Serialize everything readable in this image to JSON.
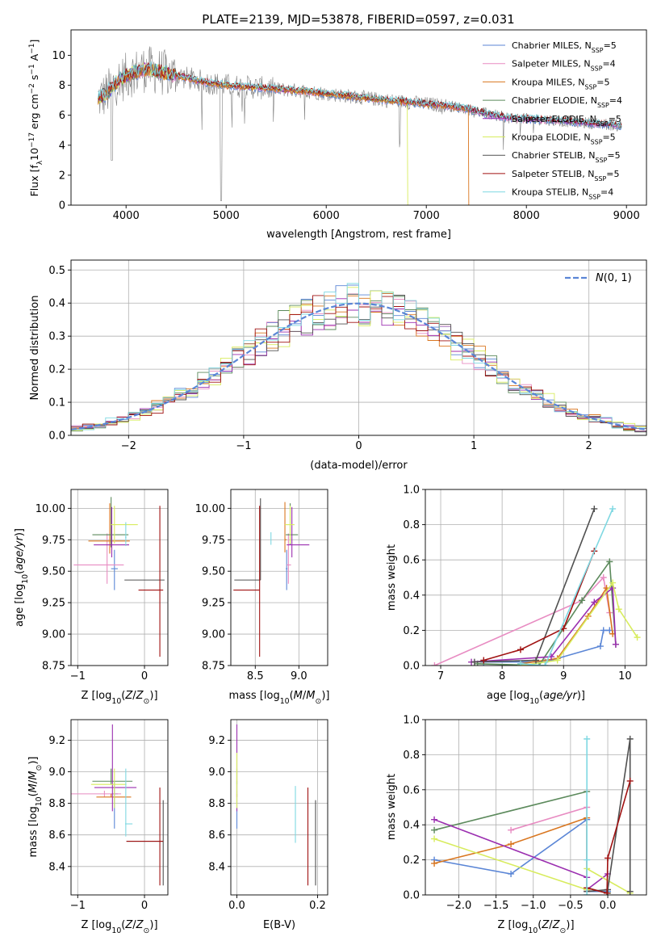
{
  "colors": {
    "series": [
      "#5b86d6",
      "#e88cc2",
      "#d9761f",
      "#5c8a5c",
      "#9b2fb0",
      "#d8ec5e",
      "#505050",
      "#a01212",
      "#7fd8e2"
    ],
    "grid": "#b0b0b0",
    "normal_curve": "#5b86d6",
    "spectrum_data": "#808080"
  },
  "series_names": [
    "Chabrier MILES, N_SSP=5",
    "Salpeter MILES, N_SSP=4",
    "Kroupa MILES, N_SSP=5",
    "Chabrier ELODIE, N_SSP=4",
    "Salpeter ELODIE, N_SSP=5",
    "Kroupa ELODIE, N_SSP=5",
    "Chabrier STELIB, N_SSP=5",
    "Salpeter STELIB, N_SSP=5",
    "Kroupa STELIB, N_SSP=4"
  ],
  "chart_data": [
    {
      "id": "spectrum",
      "type": "line",
      "title": "PLATE=2139, MJD=53878, FIBERID=0597, z=0.031",
      "xlabel": "wavelength [Angstrom, rest frame]",
      "ylabel": "Flux [f_λ 10^-17 erg cm^-2 s^-1 A^-1]",
      "xlim": [
        3450,
        9200
      ],
      "ylim": [
        0,
        11.7
      ],
      "xticks": [
        4000,
        5000,
        6000,
        7000,
        8000,
        9000
      ],
      "yticks": [
        0,
        2,
        4,
        6,
        8,
        10
      ],
      "legend": "top-right",
      "continuum_x": [
        3720,
        3800,
        3900,
        4000,
        4100,
        4200,
        4400,
        4600,
        4800,
        5000,
        5200,
        5400,
        5600,
        5800,
        6000,
        6200,
        6400,
        6600,
        6800,
        7000,
        7200,
        7400,
        7600,
        7800,
        8000,
        8200,
        8400,
        8600,
        8800,
        8950
      ],
      "continuum_y": [
        7.1,
        7.4,
        8.2,
        8.6,
        8.9,
        9.1,
        8.8,
        8.5,
        8.2,
        8.0,
        7.9,
        7.8,
        7.7,
        7.6,
        7.45,
        7.3,
        7.15,
        7.0,
        6.9,
        6.75,
        6.65,
        6.45,
        6.1,
        5.85,
        5.75,
        5.7,
        5.6,
        5.5,
        5.4,
        5.3
      ],
      "model_cutoff": [
        null,
        null,
        7420,
        null,
        null,
        6810,
        null,
        null,
        null
      ]
    },
    {
      "id": "residuals",
      "type": "line",
      "xlabel": "(data-model)/error",
      "ylabel": "Normed distribution",
      "xlim": [
        -2.5,
        2.5
      ],
      "ylim": [
        0,
        0.53
      ],
      "xticks": [
        -2,
        -1,
        0,
        1,
        2
      ],
      "yticks": [
        0,
        0.1,
        0.2,
        0.3,
        0.4,
        0.5
      ],
      "legend_label": "N(0,1)",
      "legend": "top-right",
      "bin_width": 0.1
    },
    {
      "id": "age_vs_Z",
      "type": "scatter",
      "xlabel": "Z [log10(Z/Z☉)]",
      "ylabel": "age  [log10(age/yr)]",
      "xlim": [
        -1.1,
        0.35
      ],
      "ylim": [
        8.75,
        10.15
      ],
      "xticks": [
        -1,
        0
      ],
      "yticks": [
        8.75,
        9.0,
        9.25,
        9.5,
        9.75,
        10.0
      ],
      "points": [
        {
          "x": -0.45,
          "y": 9.52,
          "xerr": [
            0.05,
            0.05
          ],
          "yerr": [
            0.17,
            0.15
          ]
        },
        {
          "x": -0.56,
          "y": 9.55,
          "xerr": [
            0.5,
            0.25
          ],
          "yerr": [
            0.15,
            0.25
          ]
        },
        {
          "x": -0.52,
          "y": 9.74,
          "xerr": [
            0.32,
            0.3
          ],
          "yerr": [
            0.1,
            0.3
          ]
        },
        {
          "x": -0.5,
          "y": 9.79,
          "xerr": [
            0.28,
            0.26
          ],
          "yerr": [
            0.1,
            0.3
          ]
        },
        {
          "x": -0.49,
          "y": 9.71,
          "xerr": [
            0.27,
            0.26
          ],
          "yerr": [
            0.1,
            0.3
          ]
        },
        {
          "x": -0.45,
          "y": 9.87,
          "xerr": [
            0.05,
            0.35
          ],
          "yerr": [
            0.15,
            0.15
          ]
        },
        {
          "x": -0.28,
          "y": 9.43,
          "xerr": [
            0.02,
            0.58
          ],
          "yerr": [
            0.0,
            0.0
          ]
        },
        {
          "x": 0.23,
          "y": 9.35,
          "xerr": [
            0.32,
            0.05
          ],
          "yerr": [
            0.53,
            0.67
          ]
        },
        {
          "x": -0.28,
          "y": 9.77,
          "xerr": [
            0.01,
            0.01
          ],
          "yerr": [
            0.07,
            0.12
          ]
        }
      ]
    },
    {
      "id": "age_vs_mass",
      "type": "scatter",
      "xlabel": "mass [log10(M/M☉)]",
      "ylim": [
        8.75,
        10.15
      ],
      "xlim": [
        8.22,
        9.33
      ],
      "xticks": [
        8.5,
        9.0
      ],
      "yticks": [
        8.75,
        9.0,
        9.25,
        9.5,
        9.75,
        10.0
      ],
      "points": [
        {
          "x": 8.86,
          "y": 9.52,
          "xerr": [
            0.01,
            0.01
          ],
          "yerr": [
            0.17,
            0.15
          ]
        },
        {
          "x": 8.88,
          "y": 9.55,
          "xerr": [
            0.02,
            0.03
          ],
          "yerr": [
            0.15,
            0.25
          ]
        },
        {
          "x": 8.84,
          "y": 9.75,
          "xerr": [
            0.0,
            0.02
          ],
          "yerr": [
            0.1,
            0.3
          ]
        },
        {
          "x": 8.9,
          "y": 9.79,
          "xerr": [
            0.05,
            0.09
          ],
          "yerr": [
            0.08,
            0.25
          ]
        },
        {
          "x": 8.92,
          "y": 9.71,
          "xerr": [
            0.06,
            0.2
          ],
          "yerr": [
            0.1,
            0.3
          ]
        },
        {
          "x": 8.9,
          "y": 9.87,
          "xerr": [
            0.06,
            0.05
          ],
          "yerr": [
            0.15,
            0.15
          ]
        },
        {
          "x": 8.56,
          "y": 9.43,
          "xerr": [
            0.3,
            0.0
          ],
          "yerr": [
            0.0,
            0.65
          ]
        },
        {
          "x": 8.55,
          "y": 9.35,
          "xerr": [
            0.3,
            0.0
          ],
          "yerr": [
            0.53,
            0.67
          ]
        },
        {
          "x": 8.68,
          "y": 9.75,
          "xerr": [
            0.0,
            0.0
          ],
          "yerr": [
            0.04,
            0.06
          ]
        }
      ]
    },
    {
      "id": "weight_vs_age",
      "type": "line",
      "xlabel": "age  [log10(age/yr)]",
      "ylabel": "mass weight",
      "xlim": [
        6.75,
        10.35
      ],
      "ylim": [
        0,
        1.0
      ],
      "xticks": [
        7,
        8,
        9,
        10
      ],
      "yticks": [
        0.0,
        0.2,
        0.4,
        0.6,
        0.8,
        1.0
      ],
      "series": [
        {
          "x": [
            7.7,
            8.7,
            9.6,
            9.65,
            9.75
          ],
          "y": [
            0.02,
            0.02,
            0.11,
            0.2,
            0.2
          ]
        },
        {
          "x": [
            6.9,
            9.3,
            9.65,
            9.75
          ],
          "y": [
            0.0,
            0.37,
            0.5,
            0.3
          ]
        },
        {
          "x": [
            8.3,
            8.9,
            9.4,
            9.7,
            9.8
          ],
          "y": [
            0.01,
            0.04,
            0.28,
            0.44,
            0.18
          ]
        },
        {
          "x": [
            7.6,
            8.6,
            9.3,
            9.75,
            9.85
          ],
          "y": [
            0.01,
            0.0,
            0.37,
            0.59,
            0.12
          ]
        },
        {
          "x": [
            7.5,
            8.8,
            9.5,
            9.8,
            9.85
          ],
          "y": [
            0.02,
            0.05,
            0.36,
            0.44,
            0.12
          ]
        },
        {
          "x": [
            8.3,
            8.9,
            9.8,
            9.9,
            10.2
          ],
          "y": [
            0.0,
            0.03,
            0.47,
            0.32,
            0.16
          ]
        },
        {
          "x": [
            7.55,
            8.55,
            9.5
          ],
          "y": [
            0.02,
            0.03,
            0.89
          ]
        },
        {
          "x": [
            7.7,
            8.3,
            9.0,
            9.5
          ],
          "y": [
            0.03,
            0.09,
            0.21,
            0.65
          ]
        },
        {
          "x": [
            8.3,
            8.7,
            9.8
          ],
          "y": [
            0.01,
            0.0,
            0.89
          ]
        }
      ]
    },
    {
      "id": "mass_vs_Z",
      "type": "scatter",
      "xlabel": "Z [log10(Z/Z☉)]",
      "ylabel": "mass [log10(M/M☉)]",
      "xlim": [
        -1.1,
        0.35
      ],
      "ylim": [
        8.22,
        9.33
      ],
      "xticks": [
        -1,
        0
      ],
      "yticks": [
        8.4,
        8.6,
        8.8,
        9.0,
        9.2
      ],
      "points": [
        {
          "x": -0.45,
          "y": 8.86,
          "xerr": [
            0.05,
            0.05
          ],
          "yerr": [
            0.22,
            0.08
          ]
        },
        {
          "x": -0.6,
          "y": 8.86,
          "xerr": [
            0.5,
            0.25
          ],
          "yerr": [
            0.02,
            0.02
          ]
        },
        {
          "x": -0.5,
          "y": 8.84,
          "xerr": [
            0.22,
            0.3
          ],
          "yerr": [
            0.0,
            0.02
          ]
        },
        {
          "x": -0.5,
          "y": 8.94,
          "xerr": [
            0.28,
            0.32
          ],
          "yerr": [
            0.02,
            0.08
          ]
        },
        {
          "x": -0.48,
          "y": 8.9,
          "xerr": [
            0.27,
            0.36
          ],
          "yerr": [
            0.15,
            0.4
          ]
        },
        {
          "x": -0.45,
          "y": 8.92,
          "xerr": [
            0.35,
            0.18
          ],
          "yerr": [
            0.15,
            0.1
          ]
        },
        {
          "x": 0.28,
          "y": 8.56,
          "xerr": [
            0.55,
            0.0
          ],
          "yerr": [
            0.28,
            0.26
          ]
        },
        {
          "x": 0.23,
          "y": 8.56,
          "xerr": [
            0.5,
            0.05
          ],
          "yerr": [
            0.28,
            0.34
          ]
        },
        {
          "x": -0.28,
          "y": 8.67,
          "xerr": [
            0.01,
            0.1
          ],
          "yerr": [
            0.08,
            0.35
          ]
        }
      ]
    },
    {
      "id": "mass_vs_ebv",
      "type": "scatter",
      "xlabel": "E(B-V)",
      "xlim": [
        -0.015,
        0.225
      ],
      "ylim": [
        8.22,
        9.33
      ],
      "xticks": [
        0.0,
        0.2
      ],
      "yticks": [
        8.4,
        8.6,
        8.8,
        9.0,
        9.2
      ],
      "points": [
        {
          "x": 0.0,
          "y": 8.86,
          "xerr": [
            0,
            0
          ],
          "yerr": [
            0.22,
            0.08
          ]
        },
        {
          "x": 0.0,
          "y": 8.86,
          "xerr": [
            0,
            0
          ],
          "yerr": [
            0.02,
            0.02
          ]
        },
        {
          "x": 0.0,
          "y": 8.84,
          "xerr": [
            0,
            0
          ],
          "yerr": [
            0.0,
            0.02
          ]
        },
        {
          "x": 0.0,
          "y": 8.94,
          "xerr": [
            0,
            0
          ],
          "yerr": [
            0.02,
            0.08
          ]
        },
        {
          "x": 0.0,
          "y": 8.9,
          "xerr": [
            0,
            0
          ],
          "yerr": [
            0.15,
            0.4
          ]
        },
        {
          "x": 0.0,
          "y": 8.92,
          "xerr": [
            0,
            0
          ],
          "yerr": [
            0.15,
            0.2
          ]
        },
        {
          "x": 0.195,
          "y": 8.56,
          "xerr": [
            0,
            0
          ],
          "yerr": [
            0.28,
            0.26
          ]
        },
        {
          "x": 0.176,
          "y": 8.56,
          "xerr": [
            0,
            0
          ],
          "yerr": [
            0.28,
            0.34
          ]
        },
        {
          "x": 0.145,
          "y": 8.73,
          "xerr": [
            0,
            0
          ],
          "yerr": [
            0.18,
            0.18
          ]
        }
      ]
    },
    {
      "id": "weight_vs_Z",
      "type": "line",
      "xlabel": "Z [log10(Z/Z☉)]",
      "ylabel": "mass weight",
      "xlim": [
        -2.45,
        0.52
      ],
      "ylim": [
        0,
        1.0
      ],
      "xticks": [
        -2.0,
        -1.5,
        -1.0,
        -0.5,
        0.0
      ],
      "yticks": [
        0.0,
        0.2,
        0.4,
        0.6,
        0.8,
        1.0
      ],
      "series": [
        {
          "x": [
            -2.33,
            -1.3,
            -0.28,
            -0.28,
            0.0
          ],
          "y": [
            0.2,
            0.12,
            0.43,
            0.02,
            0.02
          ]
        },
        {
          "x": [
            -1.3,
            -0.28,
            -0.28
          ],
          "y": [
            0.37,
            0.5,
            0.02
          ]
        },
        {
          "x": [
            -2.33,
            -1.3,
            -0.28,
            -0.28
          ],
          "y": [
            0.18,
            0.29,
            0.44,
            0.03
          ]
        },
        {
          "x": [
            -2.33,
            -0.28,
            -0.28,
            0.0
          ],
          "y": [
            0.37,
            0.59,
            0.04,
            0.01
          ]
        },
        {
          "x": [
            -2.33,
            -0.28,
            -0.28,
            0.0
          ],
          "y": [
            0.43,
            0.1,
            0.03,
            0.12
          ]
        },
        {
          "x": [
            -2.33,
            -0.28,
            -0.28,
            0.3
          ],
          "y": [
            0.32,
            0.03,
            0.15,
            0.01
          ]
        },
        {
          "x": [
            -0.28,
            0.0,
            0.3,
            0.3
          ],
          "y": [
            0.02,
            0.03,
            0.89,
            0.02
          ]
        },
        {
          "x": [
            -0.28,
            -0.01,
            0.0,
            0.3
          ],
          "y": [
            0.04,
            0.01,
            0.21,
            0.65
          ]
        },
        {
          "x": [
            -0.28,
            -0.28,
            -0.28
          ],
          "y": [
            0.89,
            0.2,
            0.0
          ]
        }
      ]
    }
  ]
}
